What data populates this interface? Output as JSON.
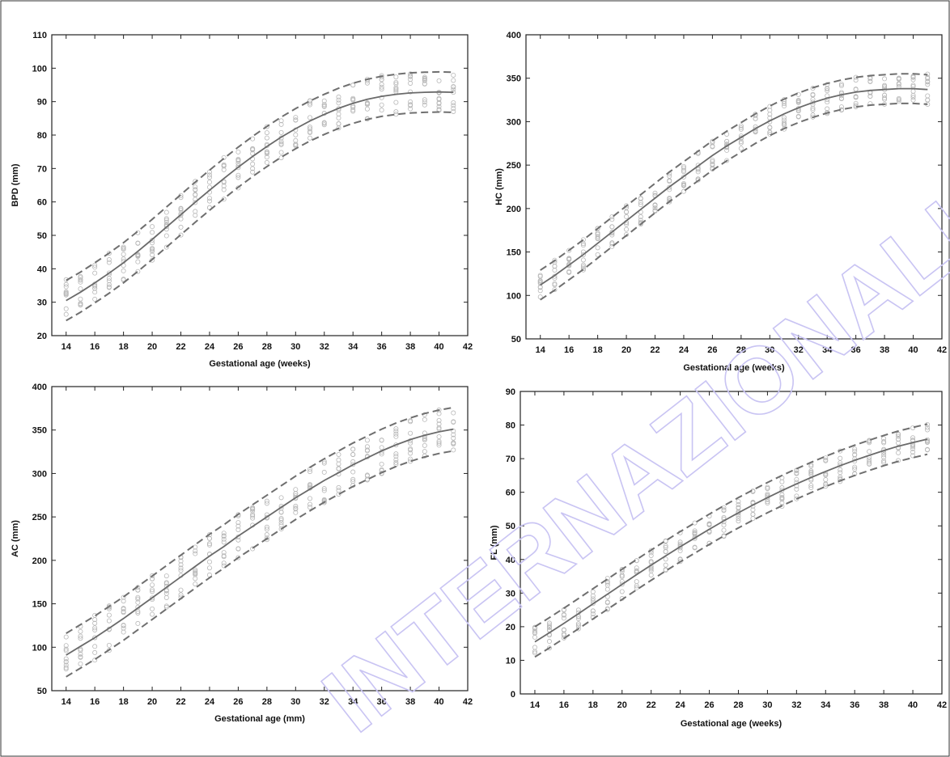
{
  "watermark": "INTERNAZIONALI",
  "chart_data": [
    {
      "type": "scatter",
      "ylabel": "BPD (mm)",
      "xlabel": "Gestational age (weeks)",
      "xlim": [
        13,
        42
      ],
      "ylim": [
        20,
        110
      ],
      "xticks": [
        14,
        16,
        18,
        20,
        22,
        24,
        26,
        28,
        30,
        32,
        34,
        36,
        38,
        40,
        42
      ],
      "yticks": [
        20,
        30,
        40,
        50,
        60,
        70,
        80,
        90,
        100,
        110
      ],
      "fit_x": [
        14,
        15,
        16,
        17,
        18,
        19,
        20,
        21,
        22,
        23,
        24,
        25,
        26,
        27,
        28,
        29,
        30,
        31,
        32,
        33,
        34,
        35,
        36,
        37,
        38,
        39,
        40,
        41
      ],
      "series": [
        {
          "values": [
            30.5,
            33,
            35.8,
            38.7,
            41.8,
            45.2,
            48.8,
            52.5,
            56.2,
            59.9,
            63.5,
            67,
            70.4,
            73.6,
            76.6,
            79.4,
            81.9,
            84.2,
            86.2,
            88,
            89.5,
            90.7,
            91.6,
            92.2,
            92.6,
            92.8,
            92.9,
            92.8
          ]
        },
        {
          "values": [
            24.5,
            27,
            29.8,
            32.7,
            35.8,
            39.2,
            42.8,
            46.5,
            50.2,
            53.9,
            57.5,
            61,
            64.4,
            67.6,
            70.6,
            73.4,
            75.9,
            78.2,
            80.2,
            82,
            83.5,
            84.7,
            85.6,
            86.2,
            86.6,
            86.8,
            86.9,
            86.8
          ]
        },
        {
          "values": [
            36.5,
            39,
            41.8,
            44.7,
            47.8,
            51.2,
            54.8,
            58.5,
            62.2,
            65.9,
            69.5,
            73,
            76.4,
            79.6,
            82.6,
            85.4,
            87.9,
            90.2,
            92.2,
            94,
            95.5,
            96.7,
            97.6,
            98.2,
            98.6,
            98.8,
            98.9,
            98.8
          ]
        }
      ]
    },
    {
      "type": "scatter",
      "ylabel": "HC (mm)",
      "xlabel": "Gestational age (weeks)",
      "xlim": [
        13,
        42
      ],
      "ylim": [
        50,
        400
      ],
      "xticks": [
        14,
        16,
        18,
        20,
        22,
        24,
        26,
        28,
        30,
        32,
        34,
        36,
        38,
        40,
        42
      ],
      "yticks": [
        50,
        100,
        150,
        200,
        250,
        300,
        350,
        400
      ],
      "fit_x": [
        14,
        15,
        16,
        17,
        18,
        19,
        20,
        21,
        22,
        23,
        24,
        25,
        26,
        27,
        28,
        29,
        30,
        31,
        32,
        33,
        34,
        35,
        36,
        37,
        38,
        39,
        40,
        41
      ],
      "series": [
        {
          "values": [
            112,
            123,
            135,
            147,
            160,
            173,
            186,
            199,
            212,
            225,
            237,
            249,
            261,
            272,
            282,
            292,
            301,
            309,
            316,
            322,
            327,
            331,
            334,
            336,
            337,
            338,
            338,
            337
          ]
        },
        {
          "values": [
            95,
            106,
            118,
            130,
            143,
            156,
            169,
            182,
            195,
            208,
            220,
            232,
            244,
            255,
            265,
            275,
            284,
            292,
            299,
            305,
            310,
            314,
            317,
            319,
            320,
            321,
            321,
            320
          ]
        },
        {
          "values": [
            129,
            140,
            152,
            164,
            177,
            190,
            203,
            216,
            229,
            242,
            254,
            266,
            278,
            289,
            299,
            309,
            318,
            326,
            333,
            339,
            344,
            348,
            351,
            353,
            354,
            355,
            355,
            354
          ]
        }
      ]
    },
    {
      "type": "scatter",
      "ylabel": "AC (mm)",
      "xlabel": "Gestational age (mm)",
      "xlim": [
        13,
        42
      ],
      "ylim": [
        50,
        400
      ],
      "xticks": [
        14,
        16,
        18,
        20,
        22,
        24,
        26,
        28,
        30,
        32,
        34,
        36,
        38,
        40,
        42
      ],
      "yticks": [
        50,
        100,
        150,
        200,
        250,
        300,
        350,
        400
      ],
      "fit_x": [
        14,
        15,
        16,
        17,
        18,
        19,
        20,
        21,
        22,
        23,
        24,
        25,
        26,
        27,
        28,
        29,
        30,
        31,
        32,
        33,
        34,
        35,
        36,
        37,
        38,
        39,
        40,
        41
      ],
      "series": [
        {
          "values": [
            91,
            101,
            111,
            122,
            133,
            145,
            157,
            169,
            181,
            193,
            205,
            216,
            228,
            239,
            250,
            261,
            272,
            282,
            292,
            301,
            310,
            318,
            326,
            333,
            339,
            344,
            348,
            351
          ]
        },
        {
          "values": [
            66,
            76,
            86,
            97,
            108,
            120,
            132,
            144,
            156,
            168,
            180,
            191,
            203,
            214,
            225,
            236,
            247,
            257,
            267,
            276,
            285,
            293,
            301,
            308,
            314,
            319,
            323,
            326
          ]
        },
        {
          "values": [
            116,
            126,
            136,
            147,
            158,
            170,
            182,
            194,
            206,
            218,
            230,
            241,
            253,
            264,
            275,
            286,
            297,
            307,
            317,
            326,
            335,
            343,
            351,
            358,
            364,
            369,
            373,
            376
          ]
        }
      ]
    },
    {
      "type": "scatter",
      "ylabel": "FL (mm)",
      "xlabel": "Gestational age (weeks)",
      "xlim": [
        13,
        42
      ],
      "ylim": [
        0,
        90
      ],
      "xticks": [
        14,
        16,
        18,
        20,
        22,
        24,
        26,
        28,
        30,
        32,
        34,
        36,
        38,
        40,
        42
      ],
      "yticks": [
        0,
        10,
        20,
        30,
        40,
        50,
        60,
        70,
        80,
        90
      ],
      "fit_x": [
        14,
        15,
        16,
        17,
        18,
        19,
        20,
        21,
        22,
        23,
        24,
        25,
        26,
        27,
        28,
        29,
        30,
        31,
        32,
        33,
        34,
        35,
        36,
        37,
        38,
        39,
        40,
        41
      ],
      "series": [
        {
          "values": [
            15.5,
            18.2,
            21,
            23.9,
            26.8,
            29.7,
            32.6,
            35.5,
            38.3,
            41.1,
            43.8,
            46.4,
            49,
            51.5,
            53.9,
            56.2,
            58.4,
            60.5,
            62.5,
            64.4,
            66.2,
            67.9,
            69.5,
            71,
            72.4,
            73.7,
            74.8,
            75.8
          ]
        },
        {
          "values": [
            11,
            13.7,
            16.5,
            19.4,
            22.3,
            25.2,
            28.1,
            31,
            33.8,
            36.6,
            39.3,
            41.9,
            44.5,
            47,
            49.4,
            51.7,
            53.9,
            56,
            58,
            59.9,
            61.7,
            63.4,
            65,
            66.5,
            67.9,
            69.2,
            70.3,
            71.3
          ]
        },
        {
          "values": [
            20,
            22.7,
            25.5,
            28.4,
            31.3,
            34.2,
            37.1,
            40,
            42.8,
            45.6,
            48.3,
            50.9,
            53.5,
            56,
            58.4,
            60.7,
            62.9,
            65,
            67,
            68.9,
            70.7,
            72.4,
            74,
            75.5,
            76.9,
            78.2,
            79.3,
            80.3
          ]
        }
      ]
    }
  ]
}
